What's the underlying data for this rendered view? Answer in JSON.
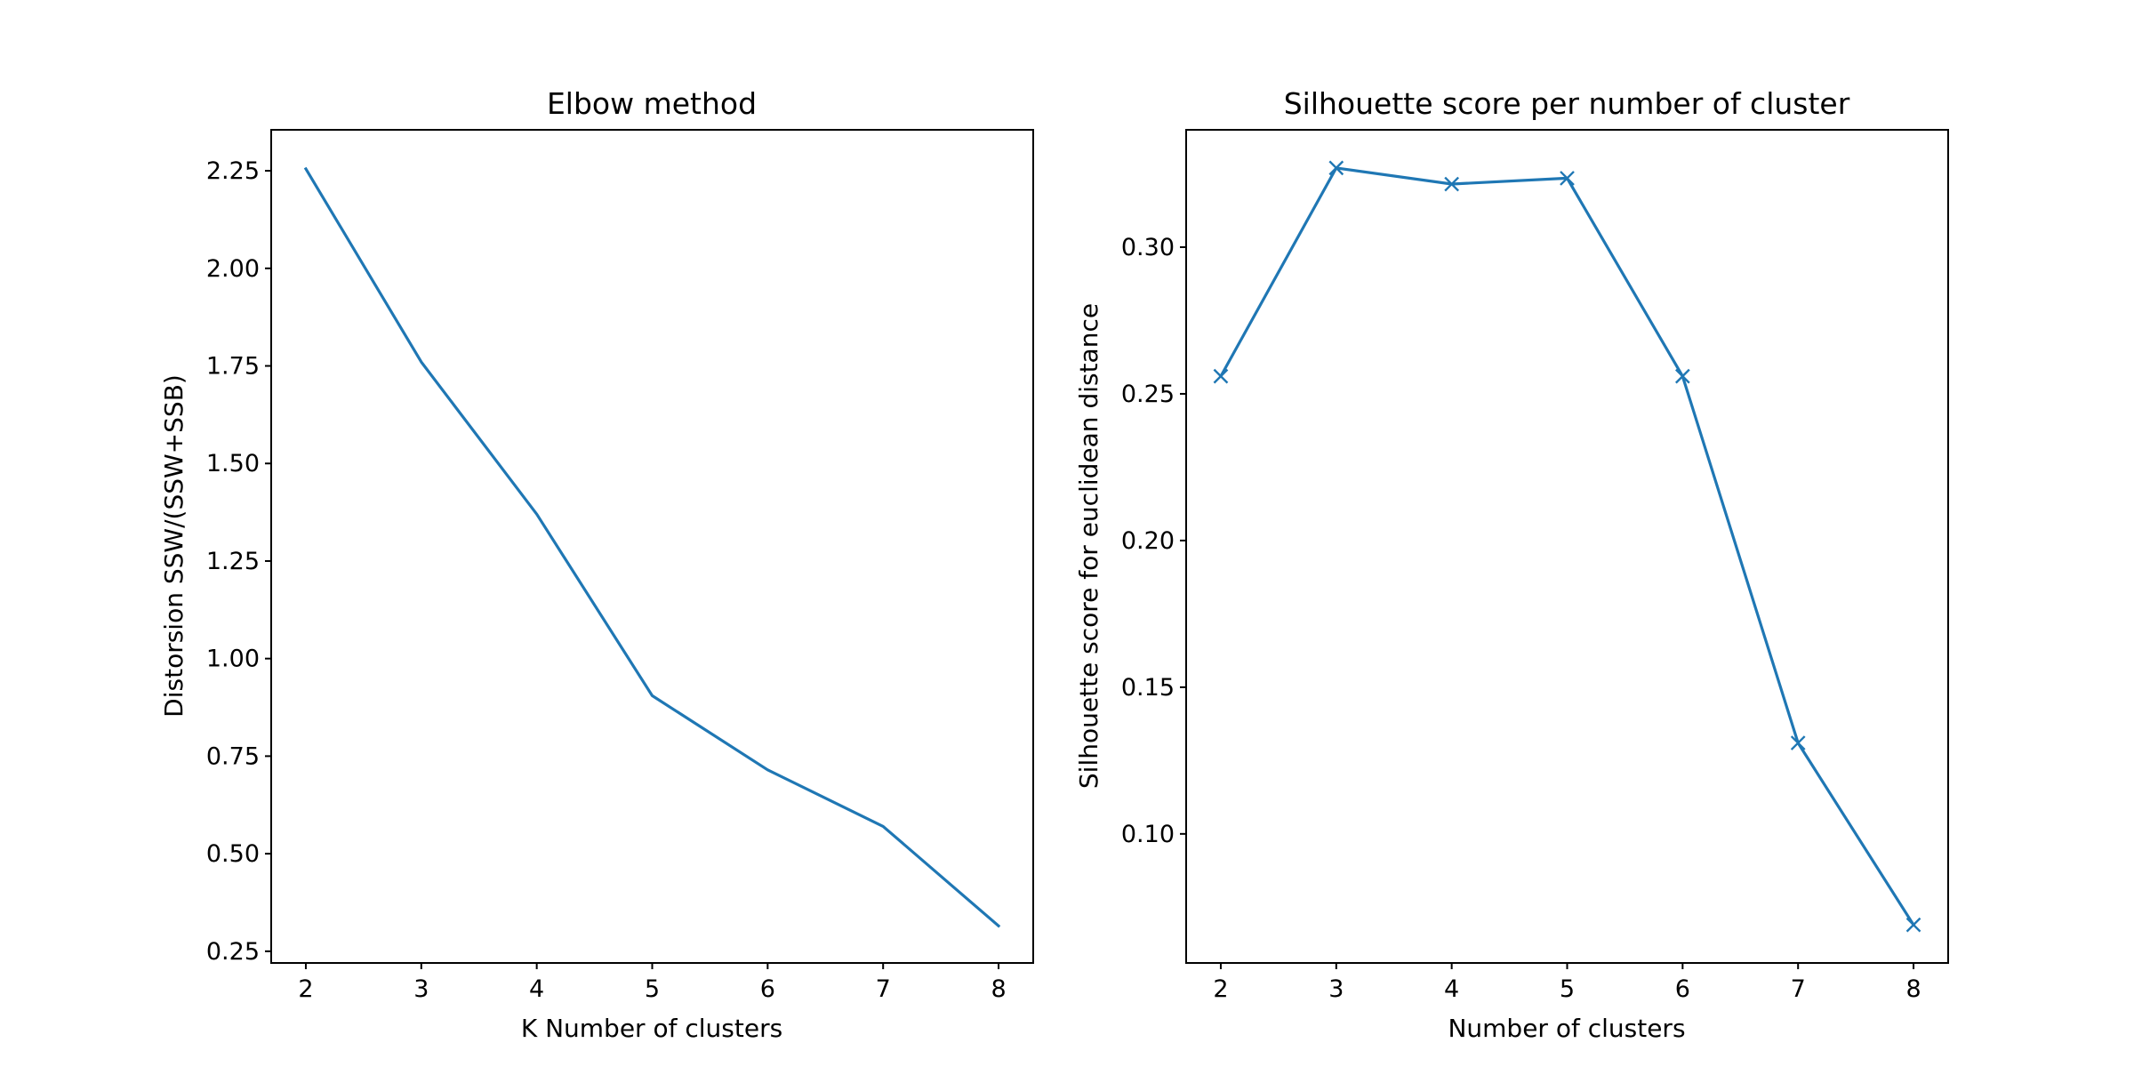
{
  "chart_data": [
    {
      "type": "line",
      "title": "Elbow method",
      "xlabel": "K Number of clusters",
      "ylabel": "Distorsion SSW/(SSW+SSB)",
      "x": [
        2,
        3,
        4,
        5,
        6,
        7,
        8
      ],
      "series": [
        {
          "values": [
            2.255,
            1.76,
            1.37,
            0.905,
            0.715,
            0.57,
            0.315
          ]
        }
      ],
      "xlim": [
        1.7,
        8.3
      ],
      "ylim": [
        0.22,
        2.355
      ],
      "xticks": [
        2,
        3,
        4,
        5,
        6,
        7,
        8
      ],
      "yticks": [
        0.25,
        0.5,
        0.75,
        1.0,
        1.25,
        1.5,
        1.75,
        2.0,
        2.25
      ],
      "ytick_labels": [
        "0.25",
        "0.50",
        "0.75",
        "1.00",
        "1.25",
        "1.50",
        "1.75",
        "2.00",
        "2.25"
      ],
      "marker": "none",
      "color": "#1f77b4",
      "grid": false
    },
    {
      "type": "line",
      "title": "Silhouette score per number of cluster",
      "xlabel": "Number of clusters",
      "ylabel": "Silhouette score for euclidean distance",
      "x": [
        2,
        3,
        4,
        5,
        6,
        7,
        8
      ],
      "series": [
        {
          "values": [
            0.256,
            0.327,
            0.3215,
            0.3235,
            0.256,
            0.131,
            0.069
          ]
        }
      ],
      "xlim": [
        1.7,
        8.3
      ],
      "ylim": [
        0.056,
        0.34
      ],
      "xticks": [
        2,
        3,
        4,
        5,
        6,
        7,
        8
      ],
      "yticks": [
        0.1,
        0.15,
        0.2,
        0.25,
        0.3
      ],
      "ytick_labels": [
        "0.10",
        "0.15",
        "0.20",
        "0.25",
        "0.30"
      ],
      "marker": "x",
      "color": "#1f77b4",
      "grid": false
    }
  ]
}
